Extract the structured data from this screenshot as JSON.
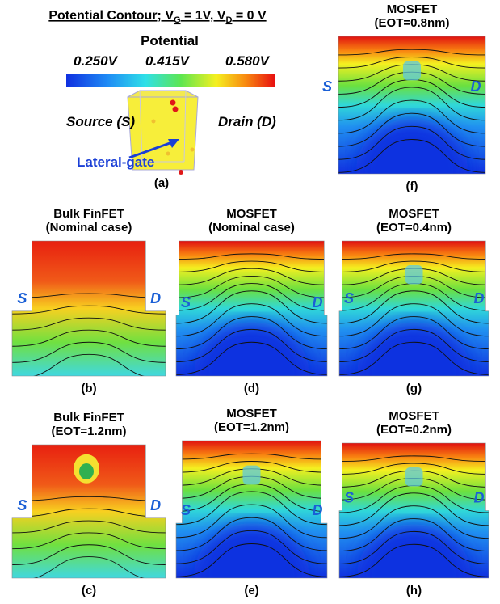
{
  "header": {
    "title_parts": [
      "Potential Contour; V",
      "G",
      " = 1V, V",
      "D",
      " = 0 V"
    ]
  },
  "legend": {
    "label": "Potential",
    "ticks": [
      "0.250V",
      "0.415V",
      "0.580V"
    ]
  },
  "panel_a": {
    "source": "Source (S)",
    "drain": "Drain (D)",
    "gate": "Lateral-gate",
    "caption": "(a)"
  },
  "panels": [
    {
      "title": "MOSFET",
      "subtitle": "(EOT=0.8nm)",
      "source": "S",
      "drain": "D",
      "caption": "(f)"
    },
    {
      "title": "Bulk FinFET",
      "subtitle": "(Nominal case)",
      "source": "S",
      "drain": "D",
      "caption": "(b)"
    },
    {
      "title": "MOSFET",
      "subtitle": "(Nominal case)",
      "source": "S",
      "drain": "D",
      "caption": "(d)"
    },
    {
      "title": "MOSFET",
      "subtitle": "(EOT=0.4nm)",
      "source": "S",
      "drain": "D",
      "caption": "(g)"
    },
    {
      "title": "Bulk FinFET",
      "subtitle": "(EOT=1.2nm)",
      "source": "S",
      "drain": "D",
      "caption": "(c)"
    },
    {
      "title": "MOSFET",
      "subtitle": "(EOT=1.2nm)",
      "source": "S",
      "drain": "D",
      "caption": "(e)"
    },
    {
      "title": "MOSFET",
      "subtitle": "(EOT=0.2nm)",
      "source": "S",
      "drain": "D",
      "caption": "(h)"
    }
  ]
}
